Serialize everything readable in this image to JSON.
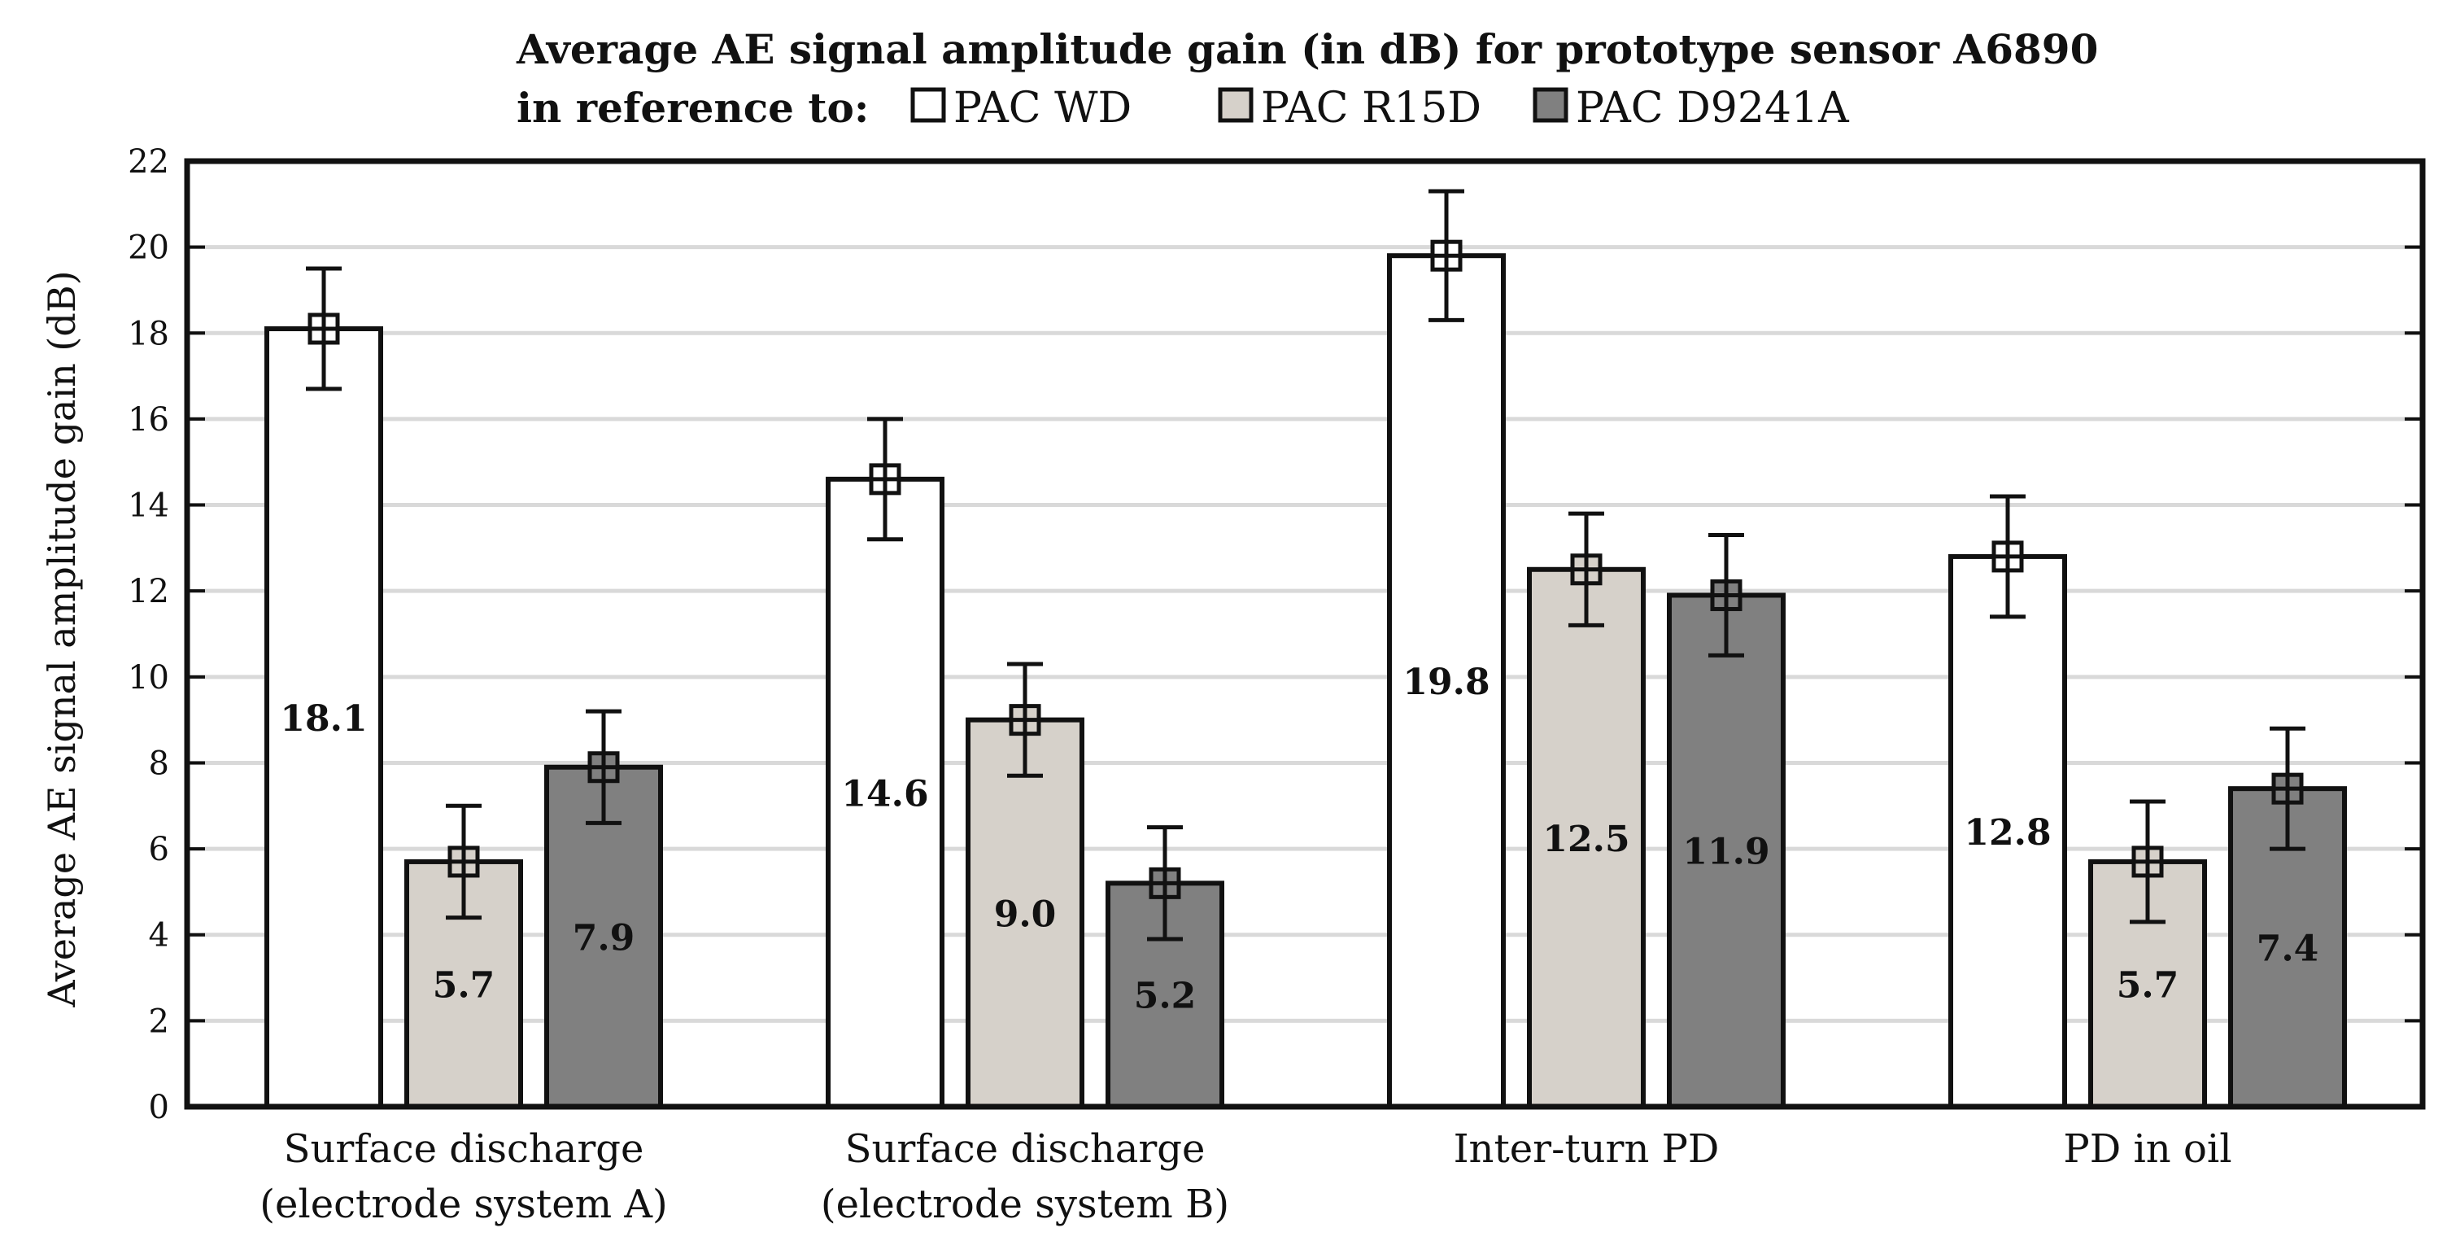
{
  "chart_data": {
    "type": "bar",
    "title": "Average AE signal amplitude gain (in dB) for prototype sensor A6890",
    "legend_prefix": "in reference to:",
    "ylabel": "Average AE signal amplitude gain (dB)",
    "xlabel": "",
    "ylim": [
      0,
      22
    ],
    "yticks": [
      "0",
      "2",
      "4",
      "6",
      "8",
      "10",
      "12",
      "14",
      "16",
      "18",
      "20",
      "22"
    ],
    "grid": true,
    "legend_position": "top",
    "categories": [
      [
        "Surface discharge",
        "(electrode system A)"
      ],
      [
        "Surface discharge",
        "(electrode system B)"
      ],
      [
        "Inter-turn PD"
      ],
      [
        "PD in oil"
      ]
    ],
    "series": [
      {
        "name": "PAC WD",
        "color": "#ffffff",
        "values": [
          18.1,
          14.6,
          19.8,
          12.8
        ],
        "labels": [
          "18.1",
          "14.6",
          "19.8",
          "12.8"
        ],
        "err_low": [
          16.7,
          13.2,
          18.3,
          11.4
        ],
        "err_high": [
          19.5,
          16.0,
          21.3,
          14.2
        ]
      },
      {
        "name": "PAC R15D",
        "color": "#d6d1ca",
        "values": [
          5.7,
          9.0,
          12.5,
          5.7
        ],
        "labels": [
          "5.7",
          "9.0",
          "12.5",
          "5.7"
        ],
        "err_low": [
          4.4,
          7.7,
          11.2,
          4.3
        ],
        "err_high": [
          7.0,
          10.3,
          13.8,
          7.1
        ]
      },
      {
        "name": "PAC D9241A",
        "color": "#808080",
        "values": [
          7.9,
          5.2,
          11.9,
          7.4
        ],
        "labels": [
          "7.9",
          "5.2",
          "11.9",
          "7.4"
        ],
        "err_low": [
          6.6,
          3.9,
          10.5,
          6.0
        ],
        "err_high": [
          9.2,
          6.5,
          13.3,
          8.8
        ]
      }
    ]
  }
}
